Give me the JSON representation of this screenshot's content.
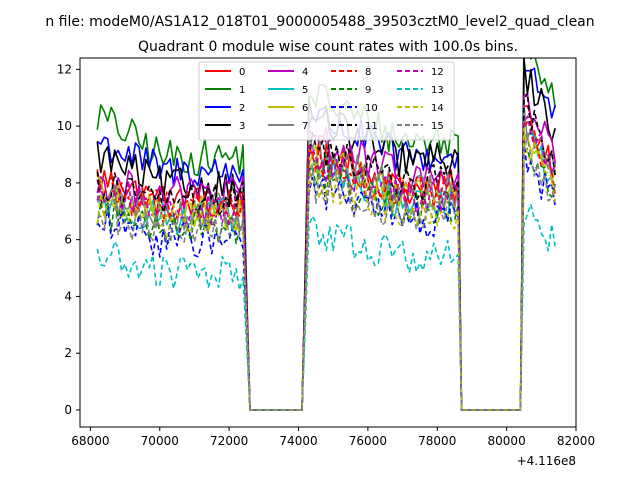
{
  "chart_data": {
    "type": "line",
    "supertitle": "n file: modeM0/AS1A12_018T01_9000005488_39503cztM0_level2_quad_clean",
    "title": "Quadrant 0 module wise count rates with 100.0s bins.",
    "xlabel": "",
    "ylabel": "",
    "x_offset_label": "+4.116e8",
    "xlim": [
      67700,
      82000
    ],
    "ylim": [
      -0.6,
      12.4
    ],
    "x_ticks": [
      68000,
      70000,
      72000,
      74000,
      76000,
      78000,
      80000,
      82000
    ],
    "x_tick_labels": [
      "68000",
      "70000",
      "72000",
      "74000",
      "76000",
      "78000",
      "80000",
      "82000"
    ],
    "y_ticks": [
      0,
      2,
      4,
      6,
      8,
      10,
      12
    ],
    "y_tick_labels": [
      "0",
      "2",
      "4",
      "6",
      "8",
      "10",
      "12"
    ],
    "legend_position": "upper center",
    "time_structure": {
      "on_intervals": [
        [
          68200,
          72400
        ],
        [
          74300,
          78600
        ],
        [
          80500,
          81400
        ]
      ],
      "ramp_down": [
        [
          72400,
          72600
        ],
        [
          78600,
          78700
        ]
      ],
      "ramp_up": [
        [
          74100,
          74300
        ],
        [
          80400,
          80500
        ]
      ],
      "bin_size_s": 100
    },
    "series": [
      {
        "name": "0",
        "color": "#ff0000",
        "dash": "solid",
        "start": 8.2,
        "mean_seg1": 7.3,
        "mean_seg2": 7.8,
        "mean_seg3": 8.6
      },
      {
        "name": "1",
        "color": "#008000",
        "dash": "solid",
        "start": 10.4,
        "mean_seg1": 8.9,
        "mean_seg2": 9.5,
        "mean_seg3": 11.0
      },
      {
        "name": "2",
        "color": "#0000ff",
        "dash": "solid",
        "start": 9.5,
        "mean_seg1": 8.4,
        "mean_seg2": 8.9,
        "mean_seg3": 10.2
      },
      {
        "name": "3",
        "color": "#000000",
        "dash": "solid",
        "start": 9.0,
        "mean_seg1": 7.9,
        "mean_seg2": 8.8,
        "mean_seg3": 9.8
      },
      {
        "name": "4",
        "color": "#bf00bf",
        "dash": "solid",
        "start": 8.0,
        "mean_seg1": 7.6,
        "mean_seg2": 8.2,
        "mean_seg3": 9.0
      },
      {
        "name": "5",
        "color": "#00bfbf",
        "dash": "solid",
        "start": 7.4,
        "mean_seg1": 6.8,
        "mean_seg2": 7.3,
        "mean_seg3": 8.1
      },
      {
        "name": "6",
        "color": "#bfbf00",
        "dash": "solid",
        "start": 7.6,
        "mean_seg1": 6.9,
        "mean_seg2": 7.6,
        "mean_seg3": 8.3
      },
      {
        "name": "7",
        "color": "#808080",
        "dash": "solid",
        "start": 7.5,
        "mean_seg1": 7.0,
        "mean_seg2": 7.7,
        "mean_seg3": 8.5
      },
      {
        "name": "8",
        "color": "#ff0000",
        "dash": "dashed",
        "start": 7.8,
        "mean_seg1": 7.2,
        "mean_seg2": 7.6,
        "mean_seg3": 8.2
      },
      {
        "name": "9",
        "color": "#008000",
        "dash": "dashed",
        "start": 7.0,
        "mean_seg1": 6.5,
        "mean_seg2": 7.1,
        "mean_seg3": 7.7
      },
      {
        "name": "10",
        "color": "#0000ff",
        "dash": "dashed",
        "start": 6.6,
        "mean_seg1": 6.0,
        "mean_seg2": 6.7,
        "mean_seg3": 7.3
      },
      {
        "name": "11",
        "color": "#000000",
        "dash": "dashed",
        "start": 7.9,
        "mean_seg1": 7.4,
        "mean_seg2": 8.0,
        "mean_seg3": 8.8
      },
      {
        "name": "12",
        "color": "#bf00bf",
        "dash": "dashed",
        "start": 7.7,
        "mean_seg1": 7.1,
        "mean_seg2": 7.5,
        "mean_seg3": 8.4
      },
      {
        "name": "13",
        "color": "#00bfbf",
        "dash": "dashed",
        "start": 5.5,
        "mean_seg1": 4.8,
        "mean_seg2": 5.4,
        "mean_seg3": 5.8
      },
      {
        "name": "14",
        "color": "#bfbf00",
        "dash": "dashed",
        "start": 7.2,
        "mean_seg1": 6.7,
        "mean_seg2": 7.0,
        "mean_seg3": 7.8
      },
      {
        "name": "15",
        "color": "#808080",
        "dash": "dashed",
        "start": 6.9,
        "mean_seg1": 6.3,
        "mean_seg2": 6.8,
        "mean_seg3": 7.5
      }
    ]
  }
}
